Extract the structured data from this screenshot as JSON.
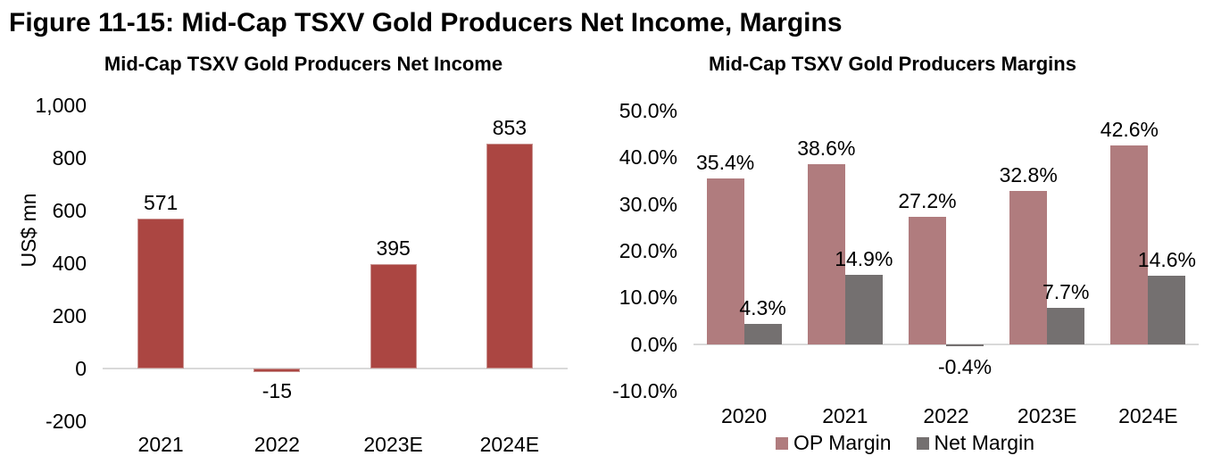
{
  "figure": {
    "title": "Figure 11-15: Mid-Cap TSXV Gold Producers Net Income, Margins"
  },
  "colors": {
    "net_income_bar": "#AB4642",
    "net_income_bar_border": "#C9928F",
    "op_margin_bar": "#B07C7E",
    "net_margin_bar": "#747070",
    "axis_line": "#D9D9D9",
    "text": "#000000"
  },
  "chart_data": [
    {
      "type": "bar",
      "title": "Mid-Cap TSXV Gold Producers Net Income",
      "ylabel": "US$ mn",
      "xlabel": "",
      "categories": [
        "2021",
        "2022",
        "2023E",
        "2024E"
      ],
      "values": [
        571,
        -15,
        395,
        853
      ],
      "data_labels": [
        "571",
        "-15",
        "395",
        "853"
      ],
      "bar_color": "#AB4642",
      "bar_border_color": "#C9928F",
      "ylim": [
        -200,
        1000
      ],
      "yticks": [
        1000,
        800,
        600,
        400,
        200,
        0,
        -200
      ],
      "ytick_labels": [
        "1,000",
        "800",
        "600",
        "400",
        "200",
        "0",
        "-200"
      ],
      "grid": false,
      "legend_position": "none"
    },
    {
      "type": "bar",
      "title": "Mid-Cap TSXV Gold Producers Margins",
      "ylabel": "",
      "xlabel": "",
      "categories": [
        "2020",
        "2021",
        "2022",
        "2023E",
        "2024E"
      ],
      "series": [
        {
          "name": "OP Margin",
          "values": [
            35.4,
            38.6,
            27.2,
            32.8,
            42.6
          ],
          "labels": [
            "35.4%",
            "38.6%",
            "27.2%",
            "32.8%",
            "42.6%"
          ],
          "color": "#B07C7E"
        },
        {
          "name": "Net Margin",
          "values": [
            4.3,
            14.9,
            -0.4,
            7.7,
            14.6
          ],
          "labels": [
            "4.3%",
            "14.9%",
            "-0.4%",
            "7.7%",
            "14.6%"
          ],
          "color": "#747070"
        }
      ],
      "ylim": [
        -10,
        50
      ],
      "yticks": [
        50,
        40,
        30,
        20,
        10,
        0,
        -10
      ],
      "ytick_labels": [
        "50.0%",
        "40.0%",
        "30.0%",
        "20.0%",
        "10.0%",
        "0.0%",
        "-10.0%"
      ],
      "grid": false,
      "legend_position": "bottom"
    }
  ]
}
